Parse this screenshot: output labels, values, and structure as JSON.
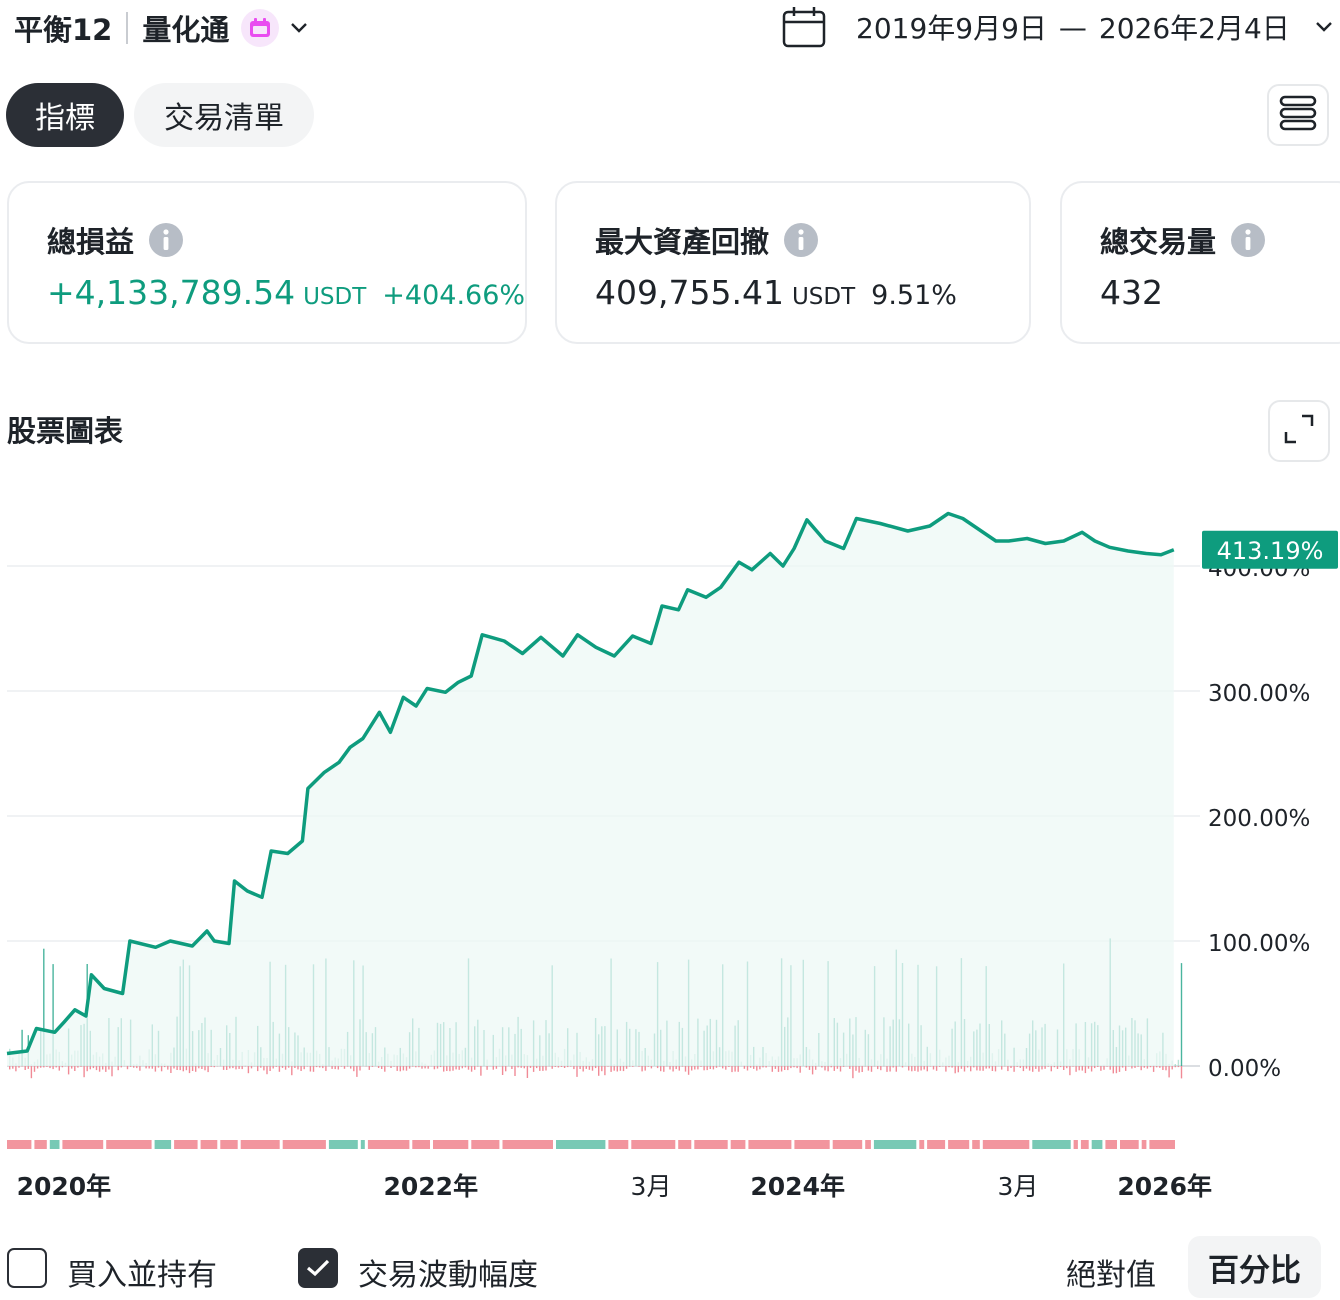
{
  "header": {
    "strategy_name": "平衡12",
    "product": "量化通",
    "date_start": "2019年9月9日",
    "date_separator": "—",
    "date_end": "2026年2月4日"
  },
  "tabs": [
    {
      "label": "指標",
      "active": true
    },
    {
      "label": "交易清單",
      "active": false
    }
  ],
  "cards": {
    "total_pnl": {
      "title": "總損益",
      "value": "+4,133,789.54",
      "unit": "USDT",
      "percent": "+404.66%"
    },
    "max_drawdown": {
      "title": "最大資產回撤",
      "value": "409,755.41",
      "unit": "USDT",
      "percent": "9.51%"
    },
    "total_trades": {
      "title": "總交易量",
      "value": "432"
    }
  },
  "chart_section": {
    "title": "股票圖表"
  },
  "chart_data": {
    "type": "line",
    "x_unit": "year",
    "y_unit": "%",
    "yticks": [
      "0.00%",
      "100.00%",
      "200.00%",
      "300.00%",
      "400.00%"
    ],
    "ylim": [
      0,
      420
    ],
    "xlim": [
      2019.69,
      2026.1
    ],
    "xticks": [
      {
        "x": 2020.0,
        "label": "2020年"
      },
      {
        "x": 2022.0,
        "label": "2022年"
      },
      {
        "x": 2023.2,
        "label": "3月"
      },
      {
        "x": 2024.0,
        "label": "2024年"
      },
      {
        "x": 2025.2,
        "label": "3月"
      },
      {
        "x": 2026.0,
        "label": "2026年"
      }
    ],
    "last_value_label": "413.19%",
    "grid": true,
    "colors": {
      "line": "#0e9c7e",
      "fill": "#eef8f5",
      "positive": "#0e9c7e",
      "negative": "#f08a96",
      "label_bg": "#0e9c7e"
    },
    "series": [
      {
        "values": [
          [
            2019.69,
            10
          ],
          [
            2019.8,
            12
          ],
          [
            2019.85,
            30
          ],
          [
            2019.95,
            27
          ],
          [
            2020.0,
            35
          ],
          [
            2020.06,
            45
          ],
          [
            2020.12,
            40
          ],
          [
            2020.15,
            73
          ],
          [
            2020.22,
            62
          ],
          [
            2020.32,
            58
          ],
          [
            2020.36,
            100
          ],
          [
            2020.5,
            95
          ],
          [
            2020.58,
            100
          ],
          [
            2020.7,
            96
          ],
          [
            2020.78,
            108
          ],
          [
            2020.82,
            100
          ],
          [
            2020.9,
            98
          ],
          [
            2020.93,
            148
          ],
          [
            2021.0,
            140
          ],
          [
            2021.08,
            135
          ],
          [
            2021.13,
            172
          ],
          [
            2021.22,
            170
          ],
          [
            2021.3,
            180
          ],
          [
            2021.33,
            222
          ],
          [
            2021.42,
            235
          ],
          [
            2021.5,
            243
          ],
          [
            2021.56,
            255
          ],
          [
            2021.63,
            262
          ],
          [
            2021.72,
            283
          ],
          [
            2021.78,
            267
          ],
          [
            2021.85,
            295
          ],
          [
            2021.92,
            288
          ],
          [
            2021.98,
            302
          ],
          [
            2022.08,
            299
          ],
          [
            2022.15,
            307
          ],
          [
            2022.22,
            312
          ],
          [
            2022.28,
            345
          ],
          [
            2022.4,
            340
          ],
          [
            2022.5,
            330
          ],
          [
            2022.6,
            343
          ],
          [
            2022.72,
            328
          ],
          [
            2022.8,
            345
          ],
          [
            2022.9,
            335
          ],
          [
            2023.0,
            328
          ],
          [
            2023.1,
            344
          ],
          [
            2023.2,
            338
          ],
          [
            2023.26,
            368
          ],
          [
            2023.35,
            365
          ],
          [
            2023.4,
            381
          ],
          [
            2023.5,
            375
          ],
          [
            2023.58,
            383
          ],
          [
            2023.68,
            403
          ],
          [
            2023.75,
            397
          ],
          [
            2023.85,
            410
          ],
          [
            2023.92,
            400
          ],
          [
            2023.98,
            414
          ],
          [
            2024.05,
            437
          ],
          [
            2024.15,
            420
          ],
          [
            2024.25,
            414
          ],
          [
            2024.32,
            438
          ],
          [
            2024.45,
            434
          ],
          [
            2024.6,
            428
          ],
          [
            2024.72,
            432
          ],
          [
            2024.82,
            442
          ],
          [
            2024.9,
            438
          ],
          [
            2025.0,
            428
          ],
          [
            2025.08,
            420
          ],
          [
            2025.15,
            420
          ],
          [
            2025.25,
            422
          ],
          [
            2025.35,
            418
          ],
          [
            2025.45,
            420
          ],
          [
            2025.55,
            427
          ],
          [
            2025.62,
            420
          ],
          [
            2025.7,
            415
          ],
          [
            2025.8,
            412
          ],
          [
            2025.9,
            410
          ],
          [
            2025.98,
            409
          ],
          [
            2026.05,
            413
          ]
        ]
      }
    ]
  },
  "footer": {
    "buy_hold": {
      "label": "買入並持有",
      "checked": false
    },
    "trade_vol": {
      "label": "交易波動幅度",
      "checked": true
    },
    "seg_absolute": "絕對值",
    "seg_percent": "百分比"
  }
}
